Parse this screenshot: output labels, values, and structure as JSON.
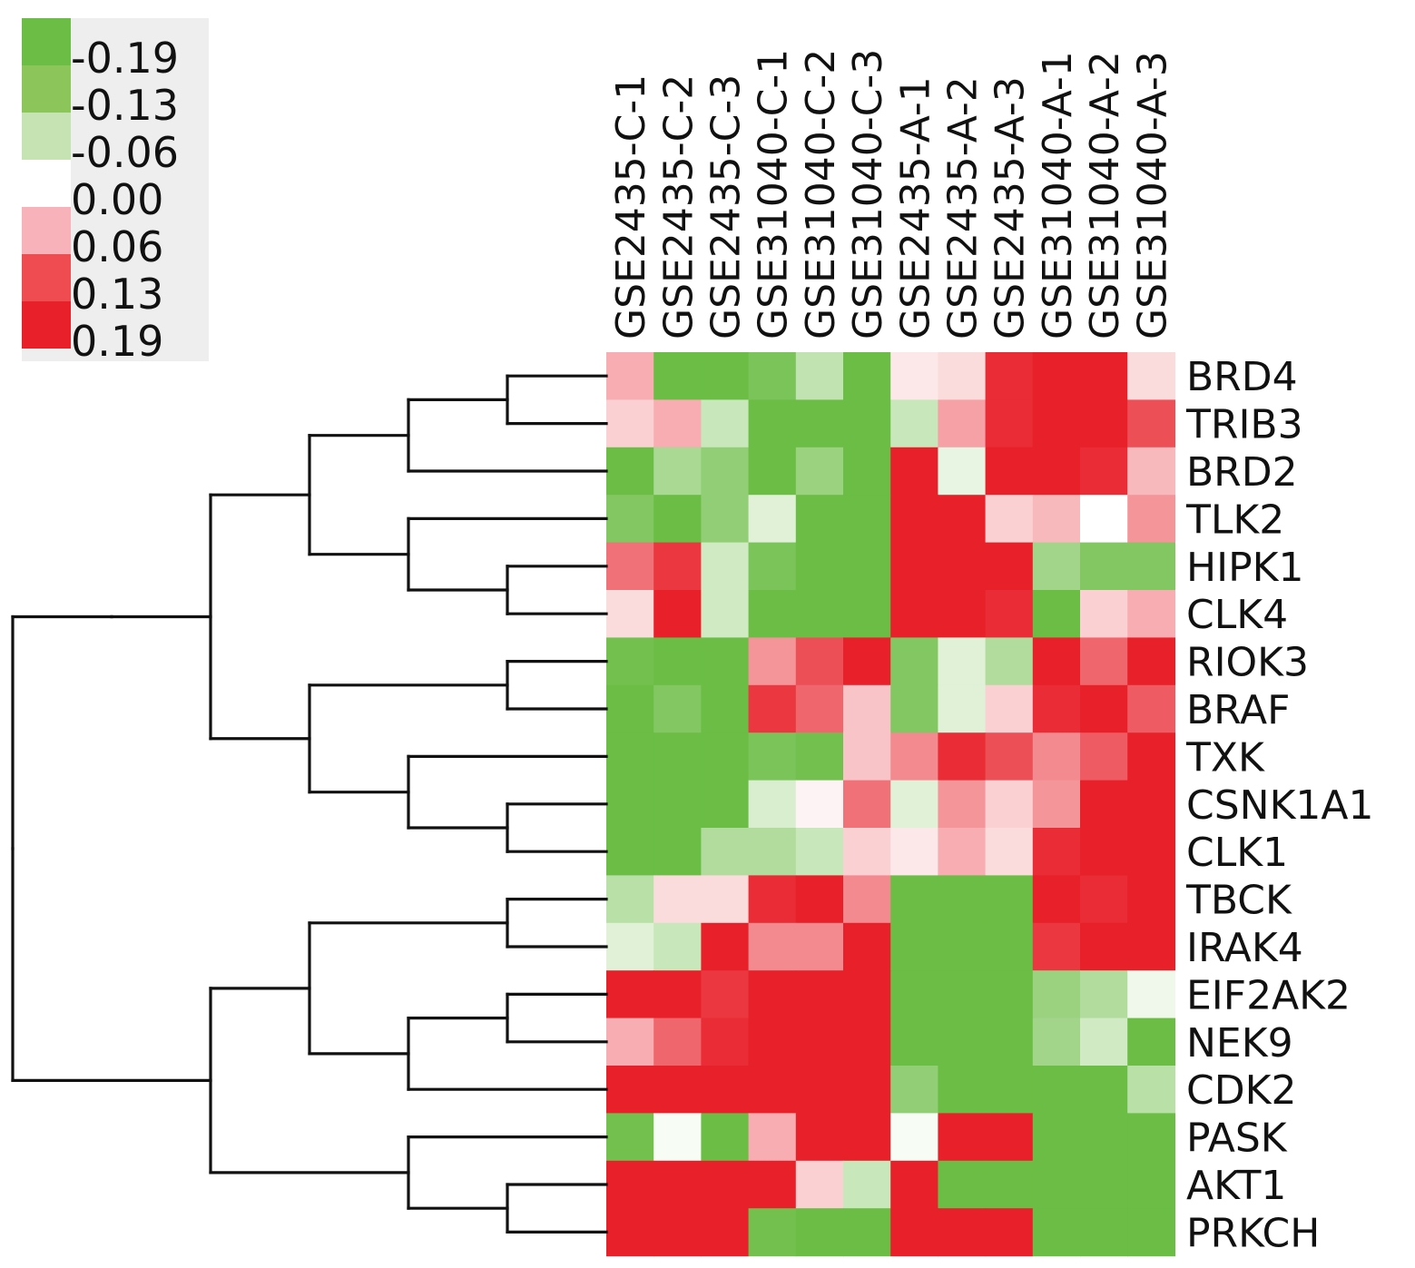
{
  "chart_data": {
    "type": "heatmap",
    "title": "",
    "columns": [
      "GSE2435-C-1",
      "GSE2435-C-2",
      "GSE2435-C-3",
      "GSE31040-C-1",
      "GSE31040-C-2",
      "GSE31040-C-3",
      "GSE2435-A-1",
      "GSE2435-A-2",
      "GSE2435-A-3",
      "GSE31040-A-1",
      "GSE31040-A-2",
      "GSE31040-A-3"
    ],
    "rows": [
      "BRD4",
      "TRIB3",
      "BRD2",
      "TLK2",
      "HIPK1",
      "CLK4",
      "RIOK3",
      "BRAF",
      "TXK",
      "CSNK1A1",
      "CLK1",
      "TBCK",
      "IRAK4",
      "EIF2AK2",
      "NEK9",
      "CDK2",
      "PASK",
      "AKT1",
      "PRKCH"
    ],
    "values": [
      [
        0.07,
        -0.19,
        -0.19,
        -0.17,
        -0.08,
        -0.19,
        0.02,
        0.03,
        0.18,
        0.19,
        0.19,
        0.03
      ],
      [
        0.04,
        0.07,
        -0.07,
        -0.19,
        -0.19,
        -0.19,
        -0.07,
        0.08,
        0.18,
        0.19,
        0.19,
        0.15
      ],
      [
        -0.19,
        -0.11,
        -0.14,
        -0.19,
        -0.13,
        -0.19,
        0.19,
        -0.03,
        0.19,
        0.19,
        0.18,
        0.06
      ],
      [
        -0.16,
        -0.19,
        -0.14,
        -0.04,
        -0.19,
        -0.19,
        0.19,
        0.19,
        0.04,
        0.06,
        0.0,
        0.09
      ],
      [
        0.12,
        0.17,
        -0.06,
        -0.17,
        -0.19,
        -0.19,
        0.19,
        0.19,
        0.19,
        -0.12,
        -0.16,
        -0.16
      ],
      [
        0.03,
        0.19,
        -0.06,
        -0.19,
        -0.19,
        -0.19,
        0.19,
        0.19,
        0.18,
        -0.19,
        0.04,
        0.07
      ],
      [
        -0.18,
        -0.19,
        -0.19,
        0.09,
        0.15,
        0.19,
        -0.16,
        -0.04,
        -0.1,
        0.19,
        0.13,
        0.19
      ],
      [
        -0.19,
        -0.16,
        -0.19,
        0.17,
        0.13,
        0.05,
        -0.16,
        -0.04,
        0.04,
        0.18,
        0.19,
        0.14
      ],
      [
        -0.19,
        -0.19,
        -0.19,
        -0.17,
        -0.18,
        0.05,
        0.1,
        0.18,
        0.15,
        0.1,
        0.14,
        0.19
      ],
      [
        -0.19,
        -0.19,
        -0.19,
        -0.05,
        0.01,
        0.12,
        -0.04,
        0.09,
        0.04,
        0.09,
        0.19,
        0.19
      ],
      [
        -0.19,
        -0.19,
        -0.1,
        -0.1,
        -0.07,
        0.04,
        0.02,
        0.07,
        0.03,
        0.18,
        0.19,
        0.19
      ],
      [
        -0.09,
        0.03,
        0.03,
        0.18,
        0.19,
        0.1,
        -0.19,
        -0.19,
        -0.19,
        0.19,
        0.18,
        0.19
      ],
      [
        -0.04,
        -0.07,
        0.19,
        0.1,
        0.1,
        0.19,
        -0.19,
        -0.19,
        -0.19,
        0.17,
        0.19,
        0.19
      ],
      [
        0.19,
        0.19,
        0.17,
        0.19,
        0.19,
        0.19,
        -0.19,
        -0.19,
        -0.19,
        -0.13,
        -0.1,
        -0.02
      ],
      [
        0.07,
        0.13,
        0.18,
        0.19,
        0.19,
        0.19,
        -0.19,
        -0.19,
        -0.19,
        -0.12,
        -0.06,
        -0.19
      ],
      [
        0.19,
        0.19,
        0.19,
        0.19,
        0.19,
        0.19,
        -0.14,
        -0.19,
        -0.19,
        -0.19,
        -0.19,
        -0.09
      ],
      [
        -0.18,
        -0.01,
        -0.19,
        0.07,
        0.19,
        0.19,
        -0.01,
        0.19,
        0.19,
        -0.19,
        -0.19,
        -0.19
      ],
      [
        0.19,
        0.19,
        0.19,
        0.19,
        0.04,
        -0.07,
        0.19,
        -0.19,
        -0.19,
        -0.19,
        -0.19,
        -0.19
      ],
      [
        0.19,
        0.19,
        0.19,
        -0.18,
        -0.19,
        -0.19,
        0.19,
        0.19,
        0.19,
        -0.19,
        -0.19,
        -0.19
      ]
    ],
    "legend": {
      "placement": "top-left",
      "labels": [
        "-0.19",
        "-0.13",
        "-0.06",
        "0.00",
        "0.06",
        "0.13",
        "0.19"
      ],
      "colors": [
        "#6bbd45",
        "#8cc55a",
        "#c5e3b3",
        "#ffffff",
        "#f7b3b9",
        "#ef4c52",
        "#e8202a"
      ]
    },
    "color_scale": {
      "min": -0.19,
      "max": 0.19,
      "negative_color": "#6bbd45",
      "positive_color": "#e8202a",
      "zero_color": "#ffffff"
    },
    "dendrogram": {
      "side": "left",
      "tree": [
        [
          [
            [
              [
                [
                  "BRD4",
                  "TRIB3"
                ],
                "BRD2"
              ],
              [
                "TLK2",
                [
                  "HIPK1",
                  "CLK4"
                ]
              ]
            ],
            [
              [
                "RIOK3",
                "BRAF"
              ],
              [
                "TXK",
                [
                  "CSNK1A1",
                  "CLK1"
                ]
              ]
            ]
          ]
        ],
        [
          [
            [
              "TBCK",
              "IRAK4"
            ],
            [
              [
                "EIF2AK2",
                "NEK9"
              ],
              "CDK2"
            ]
          ],
          [
            "PASK",
            [
              "AKT1",
              "PRKCH"
            ]
          ]
        ]
      ]
    }
  }
}
